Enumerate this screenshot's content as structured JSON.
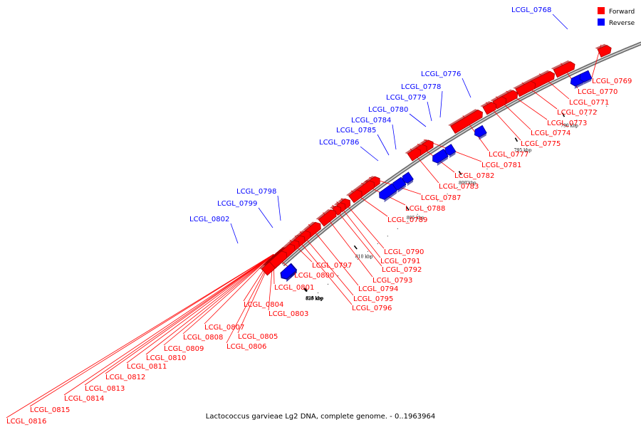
{
  "caption": "Lactococcus garvieae Lg2 DNA, complete genome. - 0..1963964",
  "colors": {
    "forward": "#ff0000",
    "reverse": "#0000ff",
    "backbone": "#8c8c8c"
  },
  "legend": [
    {
      "label": "Forward",
      "color": "#ff0000"
    },
    {
      "label": "Reverse",
      "color": "#0000ff"
    }
  ],
  "ticks": [
    "790 kbp",
    "795 kbp",
    "800 kbp",
    "805 kbp",
    "810 kbp",
    "815 kbp",
    "820 kbp",
    "825 kbp",
    "830 kbp",
    "835 kbp"
  ],
  "forward_genes": [
    "LCGL_0769",
    "LCGL_0770",
    "LCGL_0771",
    "LCGL_0772",
    "LCGL_0773",
    "LCGL_0774",
    "LCGL_0775",
    "LCGL_0777",
    "LCGL_0781",
    "LCGL_0782",
    "LCGL_0783",
    "LCGL_0787",
    "LCGL_0788",
    "LCGL_0789",
    "LCGL_0790",
    "LCGL_0791",
    "LCGL_0792",
    "LCGL_0793",
    "LCGL_0794",
    "LCGL_0795",
    "LCGL_0796",
    "LCGL_0797",
    "LCGL_0800",
    "LCGL_0801",
    "LCGL_0803",
    "LCGL_0804",
    "LCGL_0805",
    "LCGL_0806",
    "LCGL_0807",
    "LCGL_0808",
    "LCGL_0809",
    "LCGL_0810",
    "LCGL_0811",
    "LCGL_0812",
    "LCGL_0813",
    "LCGL_0814",
    "LCGL_0815",
    "LCGL_0816"
  ],
  "reverse_genes": [
    "LCGL_0768",
    "LCGL_0776",
    "LCGL_0778",
    "LCGL_0779",
    "LCGL_0780",
    "LCGL_0784",
    "LCGL_0785",
    "LCGL_0786",
    "LCGL_0798",
    "LCGL_0799",
    "LCGL_0802"
  ]
}
